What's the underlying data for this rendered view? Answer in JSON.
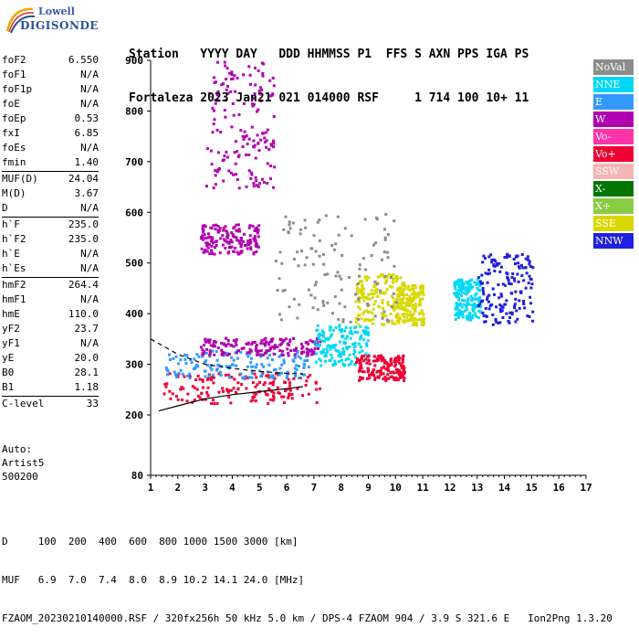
{
  "logo": {
    "line1": "Lowell",
    "line2": "DIGISONDE"
  },
  "header": {
    "line1": "Station   YYYY DAY   DDD HHMMSS P1  FFS S AXN PPS IGA PS",
    "line2": "Fortaleza 2023 Jan21 021 014000 RSF     1 714 100 10+ 11"
  },
  "params": {
    "group1": [
      {
        "k": "foF2",
        "v": "6.550"
      },
      {
        "k": "foF1",
        "v": "N/A"
      },
      {
        "k": "foF1p",
        "v": "N/A"
      },
      {
        "k": "foE",
        "v": "N/A"
      },
      {
        "k": "foEp",
        "v": "0.53"
      },
      {
        "k": "fxI",
        "v": "6.85"
      },
      {
        "k": "foEs",
        "v": "N/A"
      },
      {
        "k": "fmin",
        "v": "1.40"
      }
    ],
    "group2": [
      {
        "k": "MUF(D)",
        "v": "24.04"
      },
      {
        "k": "M(D)",
        "v": "3.67"
      },
      {
        "k": "D",
        "v": "N/A"
      }
    ],
    "group3": [
      {
        "k": "h`F",
        "v": "235.0"
      },
      {
        "k": "h`F2",
        "v": "235.0"
      },
      {
        "k": "h`E",
        "v": "N/A"
      },
      {
        "k": "h`Es",
        "v": "N/A"
      }
    ],
    "group4": [
      {
        "k": "hmF2",
        "v": "264.4"
      },
      {
        "k": "hmF1",
        "v": "N/A"
      },
      {
        "k": "hmE",
        "v": "110.0"
      },
      {
        "k": "yF2",
        "v": "23.7"
      },
      {
        "k": "yF1",
        "v": "N/A"
      },
      {
        "k": "yE",
        "v": "20.0"
      },
      {
        "k": "B0",
        "v": "28.1"
      },
      {
        "k": "B1",
        "v": "1.18"
      }
    ],
    "group5": [
      {
        "k": "C-level",
        "v": "33"
      }
    ]
  },
  "auto": {
    "line1": "Auto:",
    "line2": "Artist5",
    "line3": "500200"
  },
  "legend": [
    {
      "label": "NoVal",
      "color": "#8c8c8c"
    },
    {
      "label": "NNE",
      "color": "#00d8f8"
    },
    {
      "label": "E",
      "color": "#3399ff"
    },
    {
      "label": "W",
      "color": "#b000b0"
    },
    {
      "label": "Vo-",
      "color": "#ff33aa"
    },
    {
      "label": "Vo+",
      "color": "#ee0033"
    },
    {
      "label": "SSW",
      "color": "#f5b5b5"
    },
    {
      "label": "X-",
      "color": "#007700"
    },
    {
      "label": "X+",
      "color": "#88cc44"
    },
    {
      "label": "SSE",
      "color": "#d8d800"
    },
    {
      "label": "NNW",
      "color": "#2020e0"
    }
  ],
  "footer": {
    "line1": "D     100  200  400  600  800 1000 1500 3000 [km]",
    "line2": "MUF   6.9  7.0  7.4  8.0  8.9 10.2 14.1 24.0 [MHz]",
    "line3": "FZAOM_20230210140000.RSF / 320fx256h 50 kHz 5.0 km / DPS-4 FZAOM 904 / 3.9 S 321.6 E   Ion2Png 1.3.20"
  },
  "chart_data": {
    "type": "scatter",
    "title": "",
    "xlabel": "",
    "ylabel": "",
    "xlim": [
      1,
      17
    ],
    "ylim": [
      80,
      900
    ],
    "x_ticks": [
      1,
      2,
      3,
      4,
      5,
      6,
      7,
      8,
      9,
      10,
      11,
      12,
      13,
      14,
      15,
      16,
      17
    ],
    "y_ticks": [
      80,
      200,
      300,
      400,
      500,
      600,
      700,
      800,
      900
    ],
    "grid": false,
    "legend_position": "right",
    "traces": [
      {
        "name": "trace-lower",
        "values": [
          [
            1.3,
            208
          ],
          [
            2,
            218
          ],
          [
            3,
            232
          ],
          [
            4,
            240
          ],
          [
            5,
            246
          ],
          [
            6,
            252
          ],
          [
            6.6,
            256
          ]
        ]
      },
      {
        "name": "trace-upper-dashed",
        "values": [
          [
            1.0,
            350
          ],
          [
            1.5,
            335
          ],
          [
            2,
            320
          ],
          [
            3,
            300
          ],
          [
            4,
            292
          ],
          [
            5,
            286
          ],
          [
            6,
            282
          ],
          [
            6.6,
            281
          ]
        ]
      }
    ],
    "echo_clusters": [
      {
        "series": "Vo+",
        "x": [
          1.4,
          7.2
        ],
        "y": [
          225,
          285
        ]
      },
      {
        "series": "E",
        "x": [
          1.5,
          6.8
        ],
        "y": [
          275,
          330
        ]
      },
      {
        "series": "W",
        "x": [
          2.8,
          7.2
        ],
        "y": [
          320,
          355
        ]
      },
      {
        "series": "W",
        "x": [
          2.8,
          5.0
        ],
        "y": [
          520,
          580
        ]
      },
      {
        "series": "W",
        "x": [
          3.0,
          5.5
        ],
        "y": [
          650,
          900
        ]
      },
      {
        "series": "NNE",
        "x": [
          7.0,
          9.0
        ],
        "y": [
          300,
          380
        ]
      },
      {
        "series": "SSE",
        "x": [
          8.5,
          10.3
        ],
        "y": [
          380,
          480
        ]
      },
      {
        "series": "Vo+",
        "x": [
          8.5,
          10.3
        ],
        "y": [
          270,
          320
        ]
      },
      {
        "series": "SSE",
        "x": [
          10.0,
          11.0
        ],
        "y": [
          380,
          460
        ]
      },
      {
        "series": "NNE",
        "x": [
          12.1,
          13.1
        ],
        "y": [
          390,
          470
        ]
      },
      {
        "series": "NNW",
        "x": [
          13.0,
          15.0
        ],
        "y": [
          380,
          520
        ]
      },
      {
        "series": "NoVal",
        "x": [
          5.5,
          10.0
        ],
        "y": [
          380,
          600
        ]
      }
    ]
  }
}
